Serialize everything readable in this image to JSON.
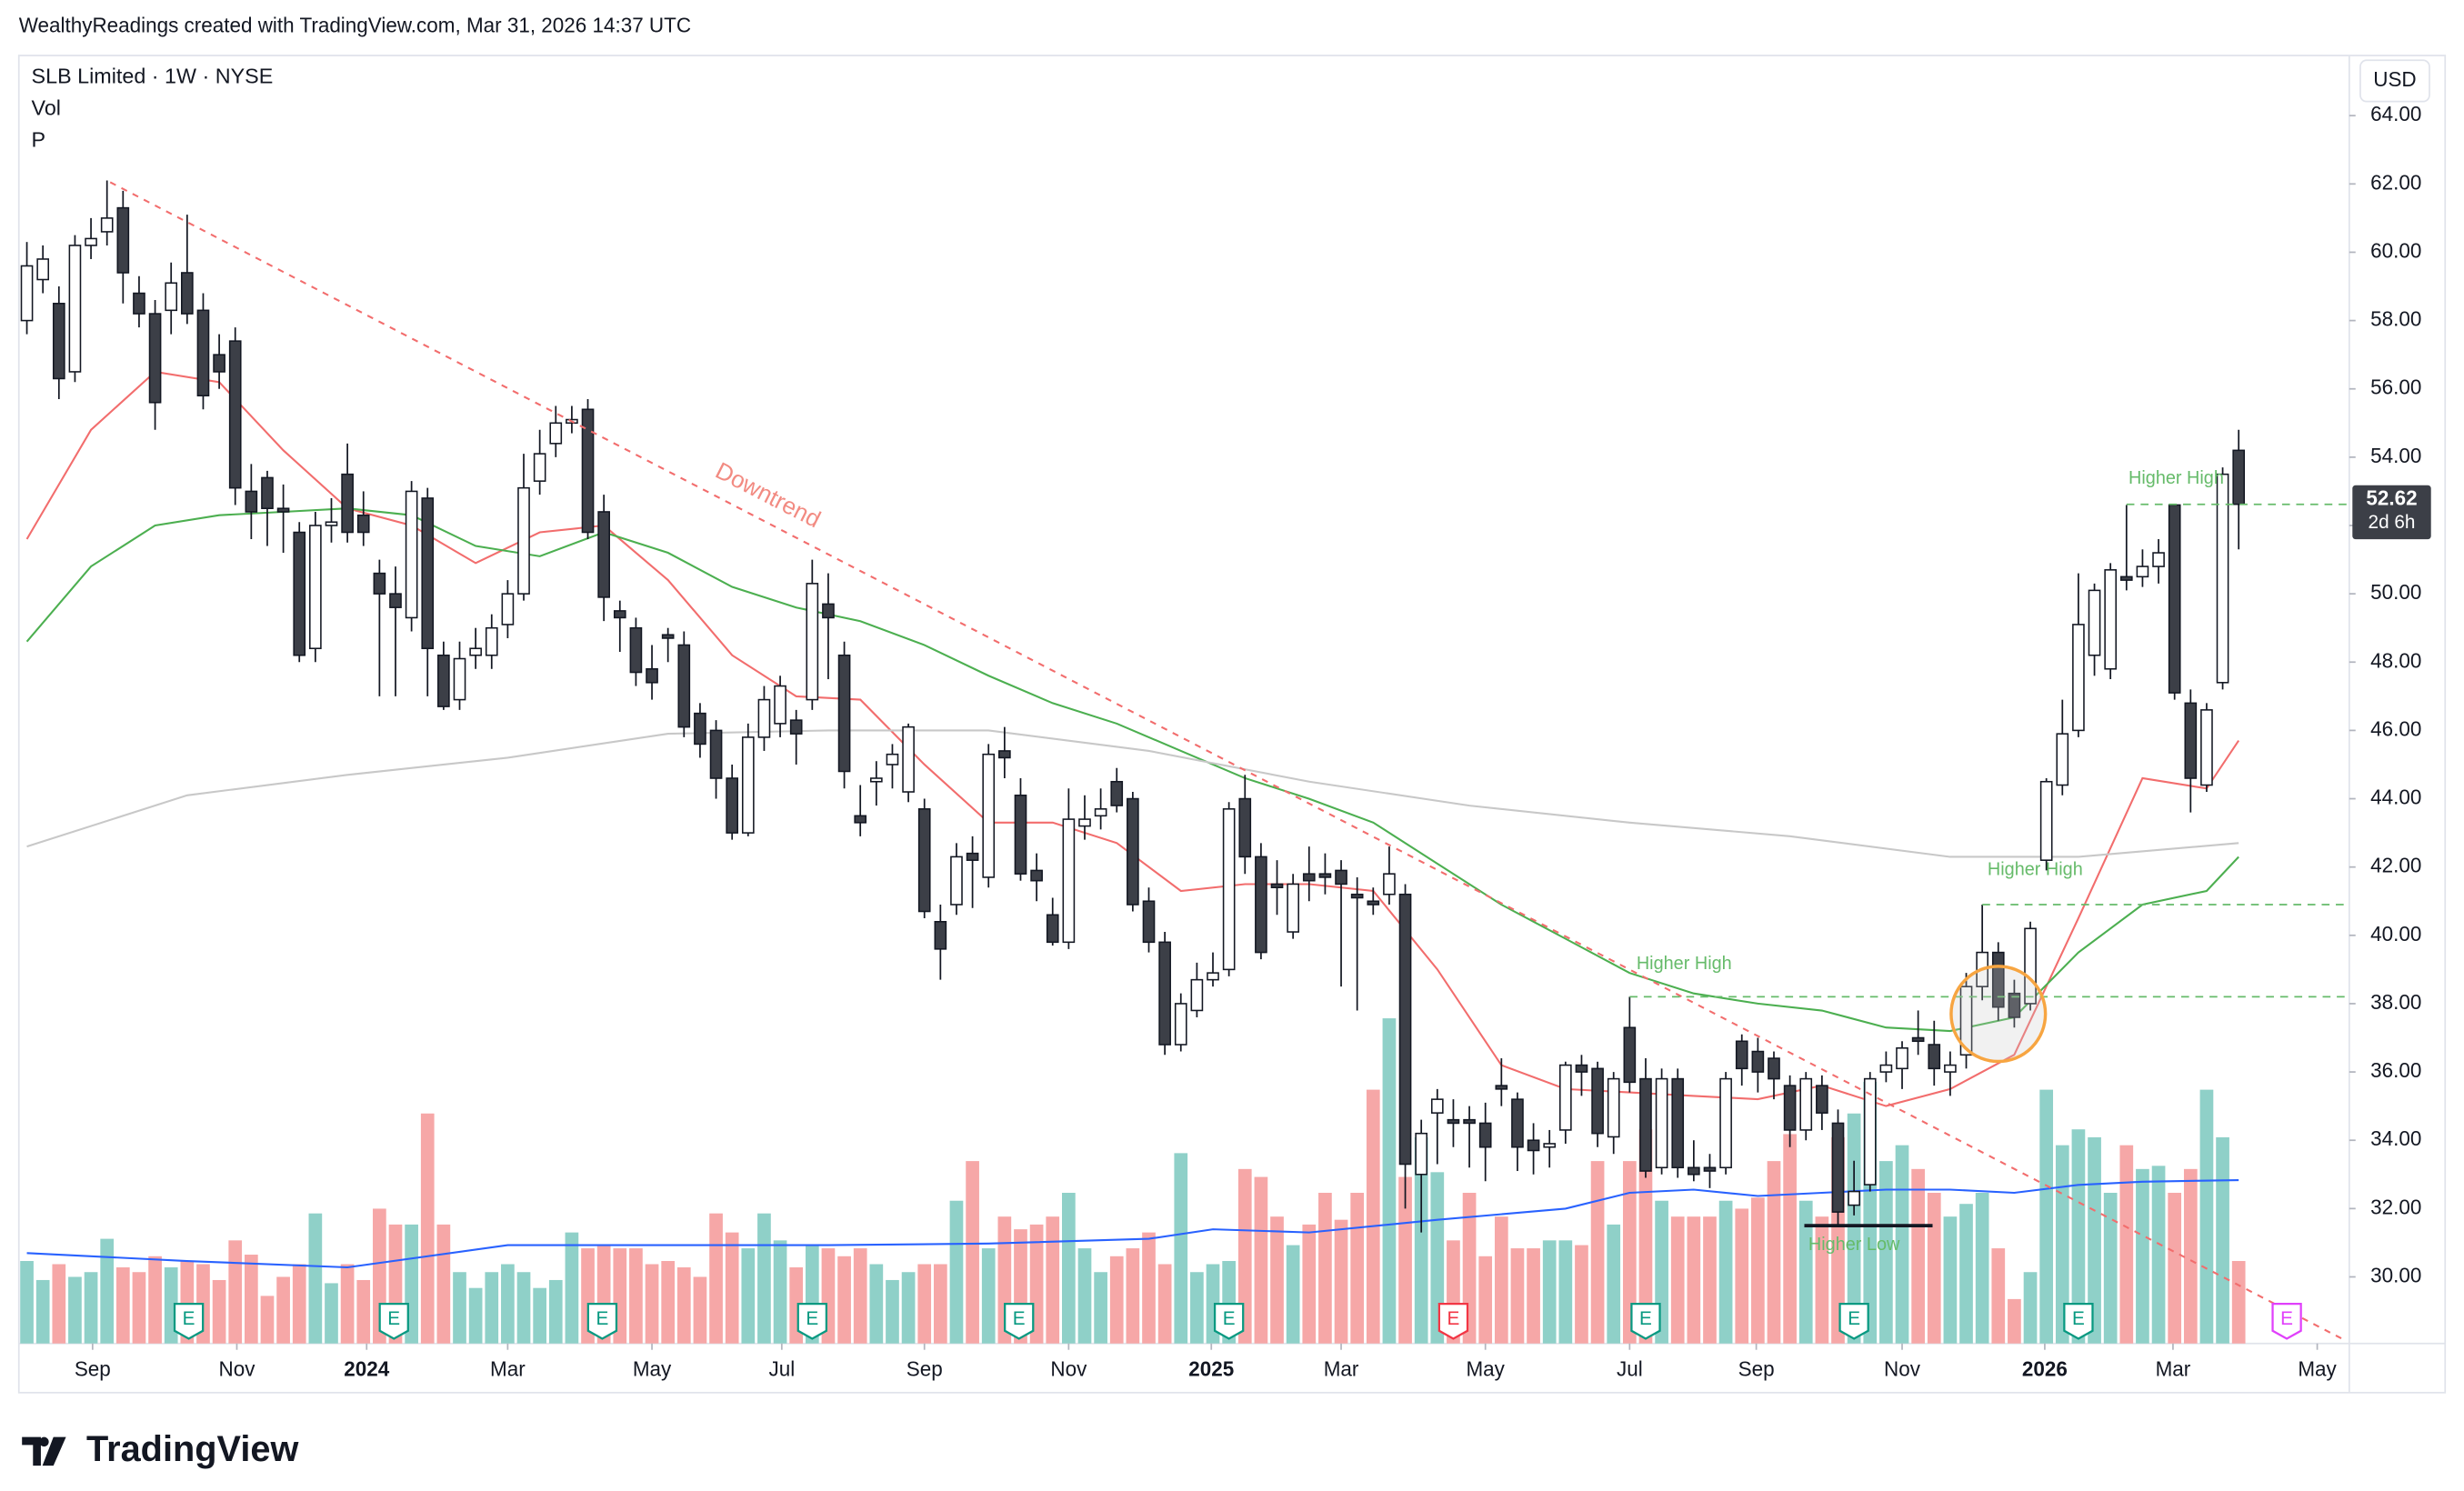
{
  "header": {
    "caption": "WealthyReadings created with TradingView.com, Mar 31, 2026 14:37 UTC",
    "logo": "TradingView"
  },
  "chart_data": {
    "type": "candlestick",
    "title": "SLB Limited · 1W · NYSE",
    "volume_label": "Vol",
    "indicator_label": "P",
    "currency": "USD",
    "open": [
      58.0,
      59.2,
      58.5,
      56.5,
      60.2,
      60.6,
      61.3,
      58.8,
      58.2,
      58.3,
      59.4,
      58.3,
      57.0,
      57.4,
      53.0,
      53.4,
      52.5,
      51.8,
      48.4,
      52.0,
      53.5,
      52.3,
      50.6,
      50.0,
      49.3,
      52.8,
      48.2,
      46.9,
      48.2,
      48.2,
      49.1,
      50.0,
      53.3,
      54.4,
      55.0,
      55.4,
      52.4,
      49.5,
      49.0,
      47.8,
      48.8,
      48.5,
      46.5,
      46.0,
      44.6,
      43.0,
      45.8,
      46.2,
      46.3,
      46.9,
      49.7,
      48.2,
      43.5,
      44.5,
      45.0,
      44.2,
      43.7,
      40.4,
      40.9,
      42.4,
      41.7,
      45.4,
      44.1,
      41.9,
      40.6,
      39.8,
      43.2,
      43.5,
      44.5,
      44.0,
      41.0,
      39.8,
      36.8,
      37.8,
      38.7,
      39.0,
      44.0,
      42.3,
      41.5,
      40.1,
      41.8,
      41.8,
      41.9,
      41.2,
      41.0,
      41.2,
      41.2,
      33.0,
      34.8,
      34.6,
      34.6,
      34.5,
      35.6,
      35.2,
      34.0,
      33.8,
      34.3,
      36.2,
      36.1,
      34.1,
      37.3,
      35.8,
      33.2,
      35.8,
      33.2,
      33.2,
      33.2,
      36.9,
      36.6,
      36.4,
      35.6,
      34.3,
      35.6,
      34.5,
      32.1,
      32.7,
      36.0,
      36.1,
      37.0,
      36.8,
      36.0,
      36.5,
      38.5,
      39.5,
      38.3,
      38.0,
      42.2,
      44.4,
      46.0,
      48.2,
      47.8,
      50.5,
      50.5,
      50.8,
      52.6,
      46.8,
      44.4,
      47.4,
      54.2
    ],
    "high": [
      60.3,
      60.2,
      59.0,
      60.5,
      61.0,
      62.1,
      61.8,
      59.3,
      58.6,
      59.7,
      61.1,
      58.8,
      57.6,
      57.8,
      53.8,
      53.6,
      53.2,
      52.1,
      52.4,
      52.8,
      54.4,
      53.0,
      51.0,
      50.8,
      53.3,
      53.1,
      48.6,
      48.6,
      49.0,
      49.4,
      50.4,
      54.1,
      54.8,
      55.5,
      55.5,
      55.7,
      52.9,
      49.8,
      49.3,
      48.5,
      49.0,
      48.9,
      46.8,
      46.3,
      45.0,
      46.2,
      47.3,
      47.6,
      46.6,
      51.0,
      50.6,
      48.6,
      44.4,
      45.1,
      45.6,
      46.2,
      44.0,
      40.9,
      42.7,
      42.9,
      45.6,
      46.1,
      44.6,
      42.4,
      41.1,
      44.3,
      44.1,
      44.3,
      44.9,
      44.2,
      41.4,
      40.1,
      38.3,
      39.2,
      39.5,
      43.9,
      44.7,
      42.7,
      42.2,
      41.8,
      42.6,
      42.4,
      42.2,
      41.7,
      41.4,
      42.6,
      41.5,
      34.6,
      35.5,
      35.2,
      35.0,
      35.1,
      36.4,
      35.4,
      34.5,
      34.3,
      36.3,
      36.5,
      36.3,
      36.0,
      38.2,
      36.4,
      36.1,
      36.1,
      34.0,
      33.6,
      36.0,
      37.1,
      37.0,
      36.6,
      35.9,
      36.0,
      35.9,
      34.9,
      33.4,
      36.0,
      36.6,
      36.9,
      37.8,
      37.5,
      36.6,
      38.9,
      40.9,
      39.8,
      38.7,
      40.4,
      44.6,
      46.9,
      50.6,
      50.3,
      50.9,
      52.6,
      51.3,
      51.6,
      52.6,
      47.2,
      46.8,
      53.7,
      54.8
    ],
    "low": [
      57.6,
      58.8,
      55.7,
      56.2,
      59.8,
      60.2,
      58.5,
      57.8,
      54.8,
      57.6,
      57.9,
      55.4,
      56.0,
      52.6,
      51.6,
      51.4,
      51.2,
      48.0,
      48.0,
      51.5,
      51.5,
      51.4,
      47.0,
      47.0,
      48.9,
      47.0,
      46.6,
      46.6,
      47.8,
      47.8,
      48.7,
      49.8,
      52.9,
      54.0,
      54.7,
      51.6,
      49.2,
      48.3,
      47.3,
      46.9,
      48.0,
      45.8,
      45.2,
      44.0,
      42.8,
      42.9,
      45.4,
      45.8,
      45.0,
      46.6,
      47.5,
      44.3,
      42.9,
      43.8,
      44.3,
      43.9,
      40.5,
      38.7,
      40.6,
      40.8,
      41.4,
      44.6,
      41.6,
      41.0,
      39.7,
      39.6,
      42.8,
      43.1,
      43.6,
      40.7,
      39.5,
      36.5,
      36.6,
      37.6,
      38.5,
      38.8,
      41.8,
      39.3,
      40.6,
      39.9,
      41.0,
      41.2,
      38.5,
      37.8,
      40.6,
      40.9,
      32.0,
      31.3,
      33.3,
      33.8,
      33.2,
      32.8,
      35.0,
      33.1,
      33.0,
      33.2,
      33.9,
      35.3,
      33.8,
      33.6,
      35.4,
      32.9,
      33.0,
      32.9,
      32.8,
      32.6,
      33.0,
      35.6,
      35.4,
      35.2,
      33.8,
      34.0,
      34.3,
      31.5,
      31.8,
      32.5,
      35.7,
      35.5,
      36.5,
      35.6,
      35.3,
      36.1,
      38.1,
      37.5,
      37.3,
      37.8,
      41.9,
      44.1,
      45.8,
      47.6,
      47.5,
      50.1,
      50.2,
      50.3,
      46.9,
      43.6,
      44.2,
      47.2,
      51.3
    ],
    "close": [
      59.6,
      59.8,
      56.3,
      60.2,
      60.4,
      61.0,
      59.4,
      58.2,
      55.6,
      59.1,
      58.2,
      55.8,
      56.5,
      53.1,
      52.4,
      52.5,
      52.4,
      48.2,
      52.0,
      52.1,
      51.8,
      51.8,
      50.0,
      49.6,
      53.0,
      48.4,
      46.7,
      48.1,
      48.4,
      49.0,
      50.0,
      53.1,
      54.1,
      55.0,
      55.1,
      51.8,
      49.9,
      49.3,
      47.7,
      47.4,
      48.7,
      46.1,
      45.6,
      44.6,
      43.0,
      45.8,
      46.9,
      47.3,
      45.9,
      50.3,
      49.3,
      44.8,
      43.3,
      44.6,
      45.3,
      46.1,
      40.7,
      39.6,
      42.3,
      42.2,
      45.3,
      45.2,
      41.8,
      41.6,
      39.8,
      43.4,
      43.4,
      43.7,
      43.8,
      40.9,
      39.8,
      36.8,
      38.0,
      38.7,
      38.9,
      43.7,
      42.3,
      39.5,
      41.4,
      41.5,
      41.6,
      41.7,
      41.5,
      41.1,
      40.9,
      41.8,
      33.3,
      34.2,
      35.2,
      34.5,
      34.5,
      33.8,
      35.5,
      33.8,
      33.7,
      33.9,
      36.2,
      36.0,
      34.2,
      35.8,
      35.7,
      33.1,
      35.8,
      33.2,
      33.0,
      33.1,
      35.8,
      36.1,
      36.0,
      35.8,
      34.3,
      35.8,
      34.8,
      31.9,
      32.5,
      35.8,
      36.2,
      36.7,
      36.9,
      36.1,
      36.2,
      38.5,
      39.5,
      37.9,
      37.6,
      40.2,
      44.5,
      45.9,
      49.1,
      50.1,
      50.7,
      50.4,
      50.8,
      51.2,
      47.1,
      44.6,
      46.6,
      53.5,
      52.62
    ],
    "volume": [
      52,
      40,
      50,
      42,
      45,
      66,
      48,
      45,
      55,
      48,
      52,
      50,
      40,
      65,
      56,
      30,
      42,
      50,
      82,
      38,
      50,
      40,
      85,
      75,
      75,
      145,
      75,
      45,
      35,
      45,
      50,
      45,
      35,
      40,
      70,
      60,
      62,
      60,
      60,
      50,
      52,
      48,
      42,
      82,
      70,
      60,
      82,
      65,
      48,
      62,
      60,
      55,
      60,
      50,
      40,
      45,
      50,
      50,
      90,
      115,
      60,
      80,
      72,
      75,
      80,
      95,
      60,
      45,
      55,
      60,
      70,
      50,
      120,
      45,
      50,
      52,
      110,
      105,
      80,
      62,
      75,
      95,
      78,
      95,
      160,
      205,
      105,
      130,
      108,
      65,
      95,
      55,
      80,
      60,
      60,
      65,
      65,
      62,
      115,
      75,
      115,
      135,
      90,
      80,
      80,
      80,
      90,
      85,
      92,
      115,
      132,
      90,
      80,
      130,
      145,
      165,
      115,
      125,
      110,
      95,
      80,
      88,
      95,
      60,
      28,
      45,
      160,
      125,
      135,
      130,
      95,
      125,
      110,
      112,
      95,
      110,
      160,
      130,
      52
    ],
    "up_color": "#ffffff",
    "down_color": "#3c3f47",
    "volume_up_color": "#8fd0c8",
    "volume_down_color": "#f6a7a7",
    "xlim": [
      -0.5,
      144.9
    ],
    "ylim": [
      28.05,
      65.76
    ],
    "vlim": [
      0,
      812
    ],
    "xticks": [
      {
        "value": 4.1,
        "label": "Sep"
      },
      {
        "value": 13.1,
        "label": "Nov"
      },
      {
        "value": 21.2,
        "label": "2024"
      },
      {
        "value": 30,
        "label": "Mar"
      },
      {
        "value": 39,
        "label": "May"
      },
      {
        "value": 47.1,
        "label": "Jul"
      },
      {
        "value": 56,
        "label": "Sep"
      },
      {
        "value": 65,
        "label": "Nov"
      },
      {
        "value": 73.9,
        "label": "2025"
      },
      {
        "value": 82,
        "label": "Mar"
      },
      {
        "value": 91,
        "label": "May"
      },
      {
        "value": 100,
        "label": "Jul"
      },
      {
        "value": 107.9,
        "label": "Sep"
      },
      {
        "value": 117,
        "label": "Nov"
      },
      {
        "value": 125.9,
        "label": "2026"
      },
      {
        "value": 133.9,
        "label": "Mar"
      },
      {
        "value": 142.9,
        "label": "May"
      }
    ],
    "yticks": [
      {
        "value": 30,
        "label": "30.00"
      },
      {
        "value": 32,
        "label": "32.00"
      },
      {
        "value": 34,
        "label": "34.00"
      },
      {
        "value": 36,
        "label": "36.00"
      },
      {
        "value": 38,
        "label": "38.00"
      },
      {
        "value": 40,
        "label": "40.00"
      },
      {
        "value": 42,
        "label": "42.00"
      },
      {
        "value": 44,
        "label": "44.00"
      },
      {
        "value": 46,
        "label": "46.00"
      },
      {
        "value": 48,
        "label": "48.00"
      },
      {
        "value": 50,
        "label": "50.00"
      },
      {
        "value": 52,
        "label": "52.00"
      },
      {
        "value": 54,
        "label": "54.00"
      },
      {
        "value": 56,
        "label": "56.00"
      },
      {
        "value": 58,
        "label": "58.00"
      },
      {
        "value": 60,
        "label": "60.00"
      },
      {
        "value": 62,
        "label": "62.00"
      },
      {
        "value": 64,
        "label": "64.00"
      }
    ],
    "series": [
      {
        "color": "#f26d6d",
        "x": [
          0,
          4,
          8,
          12,
          16,
          20,
          24,
          28,
          32,
          36,
          40,
          44,
          48,
          52,
          56,
          60,
          64,
          68,
          72,
          76,
          80,
          84,
          88,
          92,
          96,
          100,
          104,
          108,
          112,
          116,
          120,
          124,
          128,
          132,
          136,
          138
        ],
        "values": [
          51.6,
          54.8,
          56.5,
          56.2,
          54.2,
          52.5,
          52,
          50.9,
          51.8,
          52,
          50.4,
          48.2,
          47,
          46.9,
          45,
          43.3,
          43.3,
          42.7,
          41.3,
          41.5,
          41.5,
          41.3,
          39,
          36.2,
          35.5,
          35.4,
          35.3,
          35.2,
          35.6,
          35,
          35.5,
          36.5,
          40.5,
          44.6,
          44.3,
          45.7
        ]
      },
      {
        "color": "#4caf50",
        "x": [
          0,
          4,
          8,
          12,
          16,
          20,
          24,
          28,
          32,
          36,
          40,
          44,
          48,
          52,
          56,
          60,
          64,
          68,
          72,
          76,
          80,
          84,
          88,
          92,
          96,
          100,
          104,
          108,
          112,
          116,
          120,
          124,
          128,
          132,
          136,
          138
        ],
        "values": [
          48.6,
          50.8,
          52,
          52.3,
          52.4,
          52.5,
          52.3,
          51.4,
          51.1,
          51.8,
          51.2,
          50.2,
          49.6,
          49.2,
          48.5,
          47.6,
          46.8,
          46.2,
          45.4,
          44.6,
          44,
          43.3,
          42.1,
          40.9,
          39.9,
          38.9,
          38.3,
          38,
          37.8,
          37.3,
          37.2,
          37.6,
          39.5,
          40.9,
          41.3,
          42.3
        ]
      },
      {
        "color": "#c8c8c8",
        "x": [
          0,
          10,
          20,
          30,
          40,
          50,
          60,
          70,
          80,
          90,
          100,
          110,
          120,
          128,
          138
        ],
        "values": [
          42.6,
          44.1,
          44.7,
          45.2,
          45.9,
          46,
          46,
          45.4,
          44.5,
          43.8,
          43.3,
          42.9,
          42.3,
          42.3,
          42.7
        ]
      },
      {
        "color": "#2962ff",
        "axis": "volume",
        "x": [
          0,
          10,
          20,
          30,
          40,
          50,
          60,
          70,
          74,
          80,
          88,
          96,
          100,
          104,
          108,
          112,
          116,
          120,
          124,
          128,
          132,
          138
        ],
        "values": [
          57,
          52,
          48,
          62,
          62,
          62,
          63,
          66,
          72,
          70,
          78,
          85,
          95,
          97,
          93,
          95,
          97,
          97,
          95,
          100,
          102,
          103
        ]
      }
    ],
    "last_price": 52.62,
    "countdown": "2d 6h",
    "trendline": {
      "color": "#f26d6d",
      "x": [
        5.2,
        144.4
      ],
      "values": [
        62.05,
        28.2
      ]
    },
    "labels": [
      {
        "text": "Downtrend",
        "x": 46.2,
        "y": 52.85,
        "color": "#f28b82"
      },
      {
        "text": "Higher High",
        "x": 103.4,
        "y": 39.15,
        "color": "#66bb6a"
      },
      {
        "text": "Higher High",
        "x": 125.3,
        "y": 41.9,
        "color": "#66bb6a"
      },
      {
        "text": "Higher High",
        "x": 134.1,
        "y": 53.36,
        "color": "#66bb6a"
      },
      {
        "text": "Higher Low",
        "x": 114,
        "y": 30.93,
        "color": "#66bb6a"
      }
    ],
    "levels": [
      {
        "value": 38.2,
        "from": 100,
        "color": "#66bb6a"
      },
      {
        "value": 40.9,
        "from": 122,
        "color": "#66bb6a"
      },
      {
        "value": 52.62,
        "from": 131,
        "color": "#66bb6a"
      }
    ],
    "support": {
      "value": 31.5,
      "from": 110.9,
      "to": 118.9,
      "color": "#131722"
    },
    "circle": {
      "x": 123,
      "y": 37.7,
      "color": "#f7a541"
    },
    "earnings": {
      "x": [
        10.1,
        22.9,
        35.9,
        49,
        61.9,
        75,
        89,
        101,
        114,
        128,
        141
      ],
      "labels": [
        "E",
        "E",
        "E",
        "E",
        "E",
        "E",
        "E",
        "E",
        "E",
        "E",
        "E"
      ],
      "colors": [
        "#089981",
        "#089981",
        "#089981",
        "#089981",
        "#089981",
        "#089981",
        "#f23645",
        "#089981",
        "#089981",
        "#089981",
        "#e040fb"
      ]
    }
  }
}
